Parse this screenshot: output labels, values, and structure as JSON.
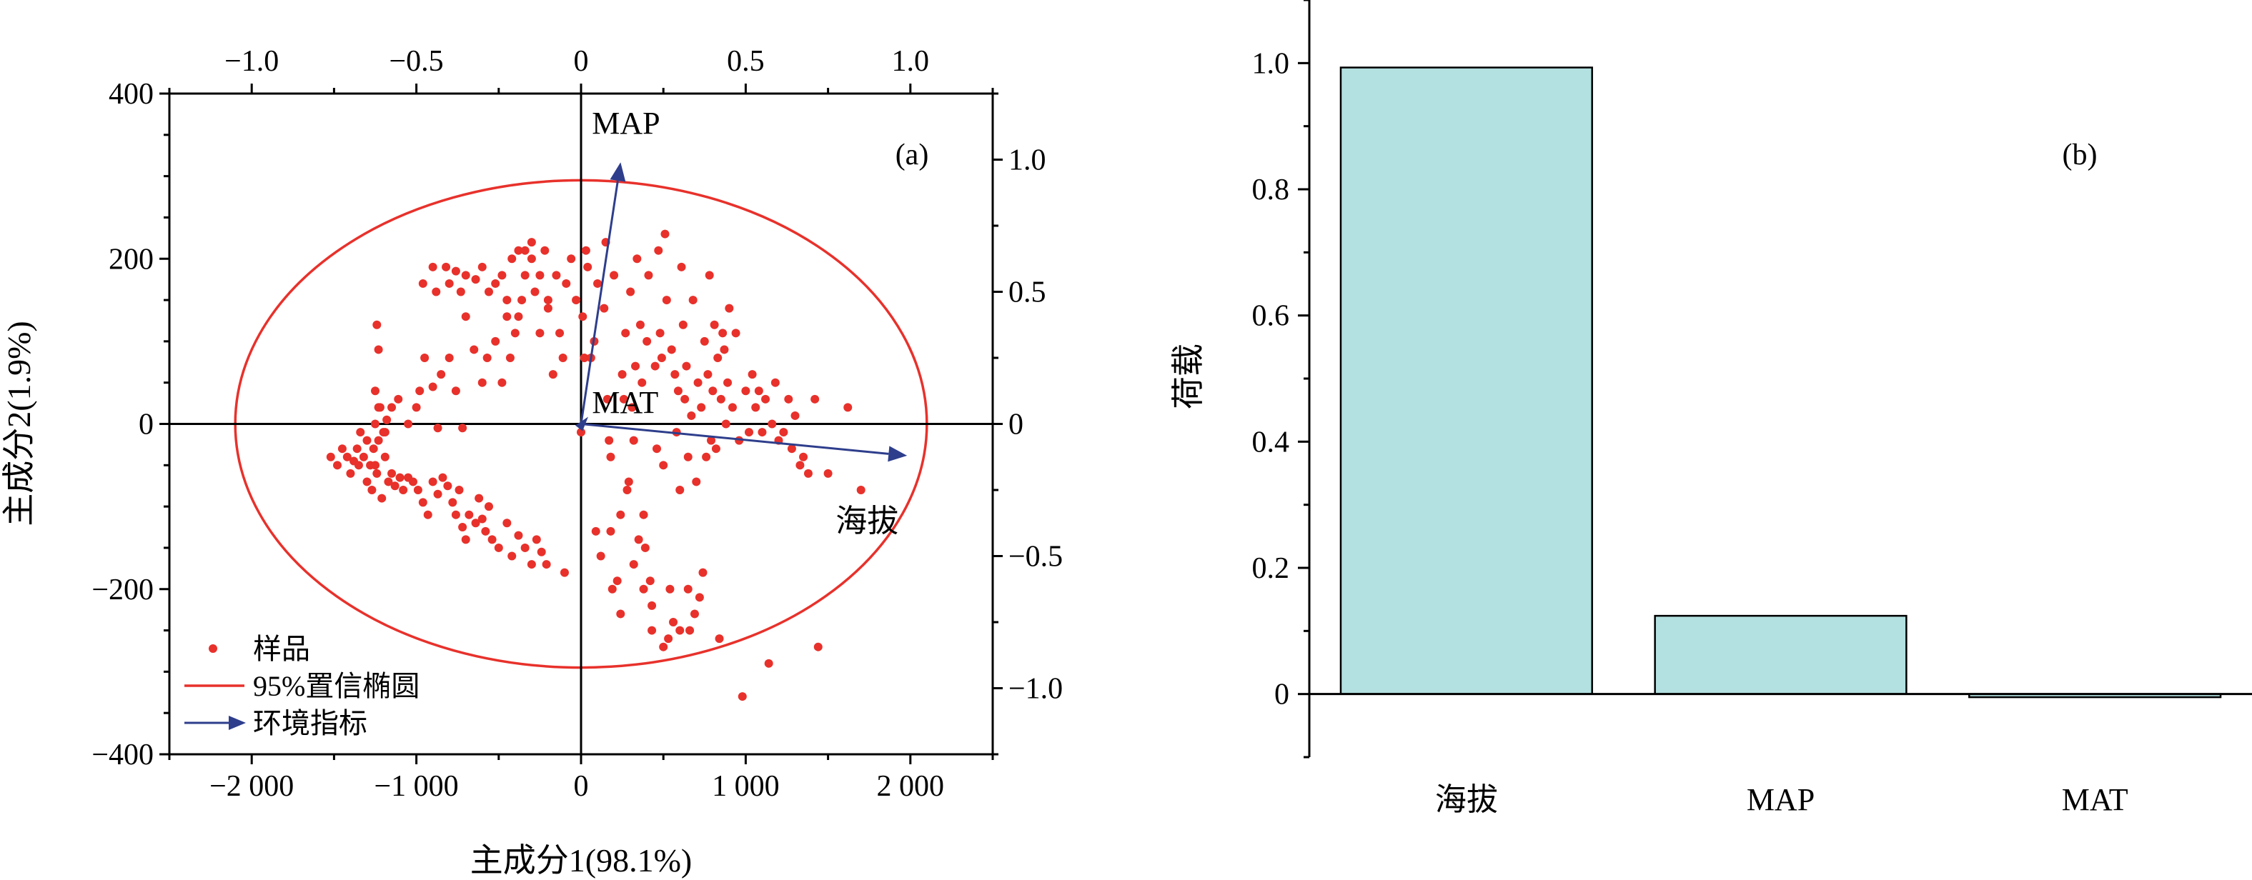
{
  "chart_data": [
    {
      "type": "scatter",
      "panel_label": "(a)",
      "xlabel": "主成分1(98.1%)",
      "ylabel": "主成分2(1.9%)",
      "xlim": [
        -2500,
        2500
      ],
      "ylim": [
        -400,
        400
      ],
      "x_ticks": [
        -2000,
        -1000,
        0,
        1000,
        2000
      ],
      "x_tick_labels": [
        "−2 000",
        "−1 000",
        "0",
        "1 000",
        "2 000"
      ],
      "y_ticks": [
        -400,
        -200,
        0,
        200,
        400
      ],
      "y_tick_labels": [
        "−400",
        "−200",
        "0",
        "200",
        "400"
      ],
      "top_xlim": [
        -1.25,
        1.25
      ],
      "top_ticks": [
        -1.0,
        -0.5,
        0,
        0.5,
        1.0
      ],
      "top_tick_labels": [
        "−1.0",
        "−0.5",
        "0",
        "0.5",
        "1.0"
      ],
      "right_ylim": [
        -1.25,
        1.25
      ],
      "right_ticks": [
        1.0,
        0.5,
        0,
        -0.5,
        -1.0
      ],
      "right_tick_labels": [
        "1.0",
        "0.5",
        "0",
        "−0.5",
        "−1.0"
      ],
      "colors": {
        "points": "#e8312b",
        "ellipse": "#e8312b",
        "arrows": "#2e3e8c"
      },
      "legend": {
        "position": "bottom-left",
        "items": [
          {
            "label": "样品",
            "kind": "marker"
          },
          {
            "label": "95%置信椭圆",
            "kind": "line"
          },
          {
            "label": "环境指标",
            "kind": "arrow"
          }
        ]
      },
      "ellipse": {
        "label": "95%置信椭圆",
        "center": [
          0,
          0
        ],
        "semi_x": 2100,
        "semi_y": 295
      },
      "vectors": [
        {
          "label": "MAP",
          "loading_x": 0.12,
          "loading_y": 0.99
        },
        {
          "label": "MAT",
          "loading_x": -0.01,
          "loading_y": 0.01
        },
        {
          "label": "海拔",
          "loading_x": 0.99,
          "loading_y": -0.12
        }
      ],
      "series": [
        {
          "name": "样品",
          "points": [
            [
              -1520,
              -40
            ],
            [
              -1480,
              -50
            ],
            [
              -1450,
              -30
            ],
            [
              -1420,
              -40
            ],
            [
              -1400,
              -60
            ],
            [
              -1380,
              -45
            ],
            [
              -1360,
              -30
            ],
            [
              -1350,
              -50
            ],
            [
              -1340,
              -10
            ],
            [
              -1320,
              -40
            ],
            [
              -1300,
              -20
            ],
            [
              -1280,
              -50
            ],
            [
              -1260,
              -30
            ],
            [
              -1250,
              0
            ],
            [
              -1240,
              -60
            ],
            [
              -1220,
              20
            ],
            [
              -1200,
              -10
            ],
            [
              -1190,
              -40
            ],
            [
              -1180,
              5
            ],
            [
              -1170,
              -70
            ],
            [
              -1300,
              -70
            ],
            [
              -1270,
              -80
            ],
            [
              -1250,
              -50
            ],
            [
              -1230,
              -20
            ],
            [
              -1210,
              -90
            ],
            [
              -1150,
              -60
            ],
            [
              -1130,
              -75
            ],
            [
              -1100,
              -65
            ],
            [
              -1080,
              -80
            ],
            [
              -1050,
              -65
            ],
            [
              -1020,
              -70
            ],
            [
              -990,
              -80
            ],
            [
              -960,
              -95
            ],
            [
              -930,
              -110
            ],
            [
              -900,
              -70
            ],
            [
              -870,
              -85
            ],
            [
              -840,
              -65
            ],
            [
              -810,
              -75
            ],
            [
              -780,
              -95
            ],
            [
              -760,
              -110
            ],
            [
              -740,
              -80
            ],
            [
              -720,
              -125
            ],
            [
              -700,
              -140
            ],
            [
              -680,
              -110
            ],
            [
              -640,
              -120
            ],
            [
              -620,
              -90
            ],
            [
              -600,
              -115
            ],
            [
              -580,
              -130
            ],
            [
              -560,
              -100
            ],
            [
              -540,
              -140
            ],
            [
              -500,
              -150
            ],
            [
              -450,
              -120
            ],
            [
              -420,
              -160
            ],
            [
              -380,
              -135
            ],
            [
              -340,
              -150
            ],
            [
              -300,
              -170
            ],
            [
              -270,
              -140
            ],
            [
              -240,
              -155
            ],
            [
              -210,
              -170
            ],
            [
              -100,
              -180
            ],
            [
              -1240,
              120
            ],
            [
              -1230,
              90
            ],
            [
              -1250,
              40
            ],
            [
              -1230,
              20
            ],
            [
              -1190,
              -10
            ],
            [
              -1150,
              20
            ],
            [
              -1110,
              30
            ],
            [
              -1050,
              0
            ],
            [
              -1000,
              20
            ],
            [
              -980,
              40
            ],
            [
              -950,
              80
            ],
            [
              -900,
              45
            ],
            [
              -870,
              -5
            ],
            [
              -850,
              60
            ],
            [
              -800,
              80
            ],
            [
              -760,
              40
            ],
            [
              -720,
              -5
            ],
            [
              -700,
              130
            ],
            [
              -650,
              90
            ],
            [
              -600,
              50
            ],
            [
              -570,
              80
            ],
            [
              -520,
              100
            ],
            [
              -480,
              50
            ],
            [
              -450,
              130
            ],
            [
              -430,
              80
            ],
            [
              -400,
              110
            ],
            [
              -380,
              130
            ],
            [
              -360,
              150
            ],
            [
              -340,
              180
            ],
            [
              -300,
              200
            ],
            [
              -280,
              160
            ],
            [
              -250,
              110
            ],
            [
              -220,
              210
            ],
            [
              -200,
              150
            ],
            [
              -170,
              60
            ],
            [
              -150,
              180
            ],
            [
              -130,
              110
            ],
            [
              -110,
              80
            ],
            [
              -90,
              170
            ],
            [
              -60,
              200
            ],
            [
              -960,
              170
            ],
            [
              -900,
              190
            ],
            [
              -880,
              160
            ],
            [
              -820,
              190
            ],
            [
              -800,
              170
            ],
            [
              -760,
              185
            ],
            [
              -730,
              160
            ],
            [
              -700,
              180
            ],
            [
              -640,
              175
            ],
            [
              -600,
              190
            ],
            [
              -560,
              160
            ],
            [
              -520,
              170
            ],
            [
              -480,
              180
            ],
            [
              -450,
              150
            ],
            [
              -420,
              200
            ],
            [
              -380,
              210
            ],
            [
              -340,
              210
            ],
            [
              -300,
              220
            ],
            [
              -250,
              180
            ],
            [
              -200,
              140
            ],
            [
              -30,
              150
            ],
            [
              0,
              -10
            ],
            [
              10,
              130
            ],
            [
              20,
              80
            ],
            [
              30,
              210
            ],
            [
              40,
              190
            ],
            [
              60,
              80
            ],
            [
              80,
              100
            ],
            [
              90,
              -130
            ],
            [
              100,
              170
            ],
            [
              120,
              -160
            ],
            [
              140,
              140
            ],
            [
              150,
              220
            ],
            [
              160,
              30
            ],
            [
              170,
              -20
            ],
            [
              180,
              -40
            ],
            [
              190,
              -200
            ],
            [
              200,
              180
            ],
            [
              220,
              -190
            ],
            [
              240,
              -230
            ],
            [
              250,
              60
            ],
            [
              260,
              30
            ],
            [
              270,
              110
            ],
            [
              280,
              -80
            ],
            [
              290,
              -70
            ],
            [
              300,
              160
            ],
            [
              310,
              20
            ],
            [
              320,
              -20
            ],
            [
              330,
              70
            ],
            [
              340,
              200
            ],
            [
              350,
              -140
            ],
            [
              360,
              120
            ],
            [
              370,
              50
            ],
            [
              380,
              -110
            ],
            [
              390,
              -150
            ],
            [
              400,
              100
            ],
            [
              410,
              180
            ],
            [
              420,
              -190
            ],
            [
              430,
              -220
            ],
            [
              450,
              70
            ],
            [
              460,
              -30
            ],
            [
              470,
              210
            ],
            [
              480,
              110
            ],
            [
              490,
              80
            ],
            [
              500,
              -50
            ],
            [
              510,
              230
            ],
            [
              520,
              150
            ],
            [
              530,
              -260
            ],
            [
              540,
              -200
            ],
            [
              550,
              90
            ],
            [
              560,
              -240
            ],
            [
              570,
              60
            ],
            [
              580,
              -10
            ],
            [
              590,
              40
            ],
            [
              600,
              -80
            ],
            [
              610,
              190
            ],
            [
              620,
              120
            ],
            [
              630,
              30
            ],
            [
              640,
              70
            ],
            [
              650,
              -40
            ],
            [
              660,
              -250
            ],
            [
              670,
              10
            ],
            [
              680,
              150
            ],
            [
              690,
              -230
            ],
            [
              700,
              -70
            ],
            [
              710,
              50
            ],
            [
              720,
              -210
            ],
            [
              730,
              20
            ],
            [
              740,
              -180
            ],
            [
              750,
              100
            ],
            [
              760,
              -40
            ],
            [
              770,
              60
            ],
            [
              780,
              180
            ],
            [
              790,
              -20
            ],
            [
              800,
              40
            ],
            [
              810,
              120
            ],
            [
              820,
              -30
            ],
            [
              830,
              80
            ],
            [
              840,
              -260
            ],
            [
              850,
              30
            ],
            [
              860,
              110
            ],
            [
              870,
              90
            ],
            [
              880,
              0
            ],
            [
              890,
              50
            ],
            [
              900,
              140
            ],
            [
              920,
              20
            ],
            [
              940,
              110
            ],
            [
              960,
              -20
            ],
            [
              980,
              -330
            ],
            [
              1000,
              40
            ],
            [
              1020,
              -10
            ],
            [
              1040,
              60
            ],
            [
              1060,
              20
            ],
            [
              1080,
              40
            ],
            [
              1100,
              -10
            ],
            [
              1120,
              30
            ],
            [
              1140,
              -290
            ],
            [
              1160,
              0
            ],
            [
              1180,
              50
            ],
            [
              1200,
              -20
            ],
            [
              1230,
              -10
            ],
            [
              1260,
              30
            ],
            [
              1280,
              -30
            ],
            [
              1300,
              10
            ],
            [
              1330,
              -50
            ],
            [
              1350,
              -40
            ],
            [
              1380,
              -60
            ],
            [
              1420,
              30
            ],
            [
              1440,
              -270
            ],
            [
              1500,
              -60
            ],
            [
              1620,
              20
            ],
            [
              1700,
              -80
            ],
            [
              180,
              -130
            ],
            [
              240,
              -110
            ],
            [
              320,
              -170
            ],
            [
              380,
              -200
            ],
            [
              430,
              -250
            ],
            [
              500,
              -270
            ],
            [
              600,
              -250
            ],
            [
              650,
              -200
            ]
          ]
        }
      ]
    },
    {
      "type": "bar",
      "panel_label": "(b)",
      "xlabel": "",
      "ylabel": "荷载",
      "categories": [
        "海拔",
        "MAP",
        "MAT"
      ],
      "values": [
        0.993,
        0.124,
        -0.005
      ],
      "ylim": [
        -0.1,
        1.1
      ],
      "y_ticks": [
        0,
        0.2,
        0.4,
        0.6,
        0.8,
        1.0
      ],
      "y_tick_labels": [
        "0",
        "0.2",
        "0.4",
        "0.6",
        "0.8",
        "1.0"
      ],
      "bar_color": "#b3e0e0",
      "bar_stroke": "#000000"
    }
  ]
}
